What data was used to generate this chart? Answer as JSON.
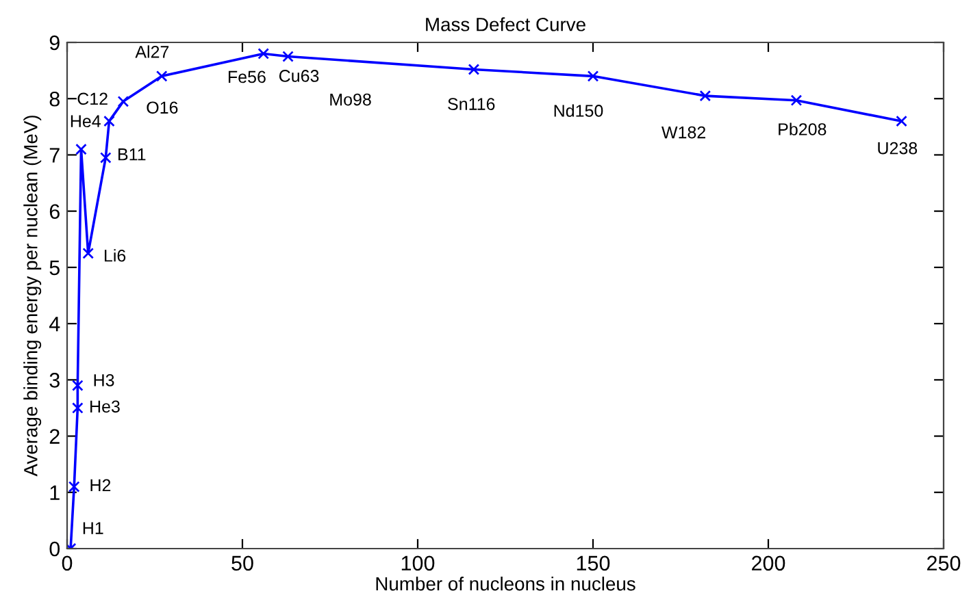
{
  "chart_data": {
    "type": "line",
    "title": "Mass Defect Curve",
    "xlabel": "Number of nucleons in nucleus",
    "ylabel": "Average binding energy per nuclean (MeV)",
    "x": [
      1,
      2,
      3,
      3,
      4,
      6,
      11,
      12,
      16,
      27,
      56,
      63,
      116,
      150,
      182,
      208,
      238
    ],
    "series": [
      {
        "color": "#0000ff",
        "values": [
          0,
          1.1,
          2.5,
          2.9,
          7.1,
          5.25,
          6.95,
          7.6,
          7.95,
          8.4,
          8.8,
          8.75,
          8.52,
          8.4,
          8.05,
          7.97,
          7.6
        ]
      }
    ],
    "marker": "cross",
    "line_style": "solid",
    "grid": false,
    "legend": false,
    "xlim": [
      0,
      250
    ],
    "xticks": [
      0,
      50,
      100,
      150,
      200,
      250
    ],
    "ylim": [
      0,
      9
    ],
    "yticks": [
      0,
      1,
      2,
      3,
      4,
      5,
      6,
      7,
      8,
      9
    ],
    "annotations": [
      {
        "text": "H1",
        "x": 1,
        "y": 0
      },
      {
        "text": "H2",
        "x": 2,
        "y": 1.1
      },
      {
        "text": "H3",
        "x": 3,
        "y": 2.9
      },
      {
        "text": "He3",
        "x": 3,
        "y": 2.5
      },
      {
        "text": "He4",
        "x": 4,
        "y": 7.1
      },
      {
        "text": "Li6",
        "x": 6,
        "y": 5.25
      },
      {
        "text": "B11",
        "x": 11,
        "y": 6.95
      },
      {
        "text": "C12",
        "x": 12,
        "y": 7.6
      },
      {
        "text": "O16",
        "x": 16,
        "y": 7.95
      },
      {
        "text": "Al27",
        "x": 27,
        "y": 8.4
      },
      {
        "text": "Fe56",
        "x": 56,
        "y": 8.8
      },
      {
        "text": "Cu63",
        "x": 63,
        "y": 8.75
      },
      {
        "text": "Mo98",
        "x": 98,
        "y": 8.6
      },
      {
        "text": "Sn116",
        "x": 116,
        "y": 8.52
      },
      {
        "text": "Nd150",
        "x": 150,
        "y": 8.4
      },
      {
        "text": "W182",
        "x": 182,
        "y": 8.05
      },
      {
        "text": "Pb208",
        "x": 208,
        "y": 7.97
      },
      {
        "text": "U238",
        "x": 238,
        "y": 7.6
      }
    ]
  }
}
